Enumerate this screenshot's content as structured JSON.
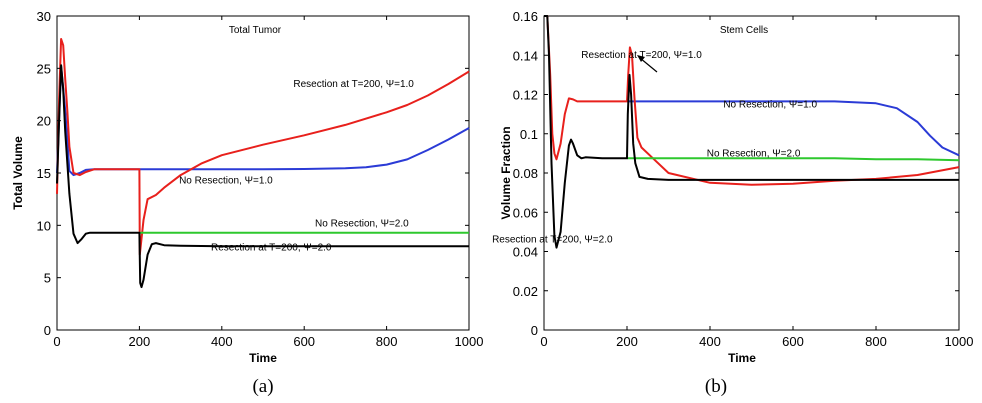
{
  "chart_data": [
    {
      "type": "line",
      "title": "Total Tumor",
      "xlabel": "Time",
      "ylabel": "Total Volume",
      "xlim": [
        0,
        1000
      ],
      "ylim": [
        0,
        30
      ],
      "xticks": [
        0,
        200,
        400,
        600,
        800,
        1000
      ],
      "yticks": [
        0,
        5,
        10,
        15,
        20,
        25,
        30
      ],
      "grid": false,
      "caption": "(a)",
      "series": [
        {
          "name": "No Resection, Ψ=1.0",
          "color": "#2b3bd6",
          "x": [
            0,
            10,
            20,
            30,
            40,
            55,
            70,
            90,
            120,
            160,
            200,
            300,
            400,
            500,
            600,
            700,
            750,
            800,
            850,
            900,
            950,
            1000
          ],
          "y": [
            15,
            25.2,
            21,
            15.2,
            14.8,
            15.0,
            15.3,
            15.35,
            15.35,
            15.35,
            15.35,
            15.35,
            15.35,
            15.35,
            15.38,
            15.45,
            15.55,
            15.8,
            16.3,
            17.2,
            18.2,
            19.3
          ]
        },
        {
          "name": "Resection at T=200, Ψ=1.0",
          "color": "#e8201c",
          "x": [
            0,
            5,
            10,
            15,
            20,
            25,
            30,
            40,
            55,
            70,
            90,
            120,
            160,
            199,
            200,
            201,
            210,
            220,
            240,
            260,
            300,
            350,
            400,
            500,
            600,
            700,
            800,
            850,
            900,
            950,
            1000
          ],
          "y": [
            13,
            22,
            27.8,
            27.2,
            24,
            21,
            17.5,
            15.0,
            14.8,
            15.1,
            15.35,
            15.35,
            15.35,
            15.35,
            15.35,
            7.2,
            10.5,
            12.5,
            12.9,
            13.6,
            14.8,
            15.9,
            16.7,
            17.7,
            18.6,
            19.6,
            20.8,
            21.5,
            22.4,
            23.5,
            24.7
          ]
        },
        {
          "name": "No Resection, Ψ=2.0",
          "color": "#2ec82e",
          "x": [
            200,
            250,
            300,
            400,
            500,
            600,
            700,
            800,
            900,
            1000
          ],
          "y": [
            9.3,
            9.3,
            9.3,
            9.3,
            9.3,
            9.3,
            9.3,
            9.3,
            9.3,
            9.3
          ]
        },
        {
          "name": "Resection at T=200, Ψ=2.0",
          "color": "#000000",
          "x": [
            0,
            5,
            10,
            15,
            20,
            30,
            40,
            50,
            60,
            70,
            80,
            100,
            140,
            199,
            200,
            202,
            205,
            210,
            220,
            230,
            240,
            260,
            300,
            400,
            600,
            800,
            1000
          ],
          "y": [
            14,
            20,
            25.3,
            23,
            19,
            13,
            9.2,
            8.3,
            8.7,
            9.2,
            9.3,
            9.3,
            9.3,
            9.3,
            9.3,
            4.5,
            4.1,
            4.8,
            7.2,
            8.2,
            8.3,
            8.1,
            8.05,
            8.0,
            8.0,
            8.0,
            8.0
          ]
        }
      ],
      "annotations": [
        {
          "text": "Resection at T=200, Ψ=1.0",
          "x": 720,
          "y": 23.2
        },
        {
          "text": "No Resection, Ψ=1.0",
          "x": 410,
          "y": 14.0
        },
        {
          "text": "No Resection, Ψ=2.0",
          "x": 740,
          "y": 9.9
        },
        {
          "text": "Resection at T=200, Ψ=2.0",
          "x": 520,
          "y": 7.6
        }
      ]
    },
    {
      "type": "line",
      "title": "Stem Cells",
      "xlabel": "Time",
      "ylabel": "Volume Fraction",
      "xlim": [
        0,
        1000
      ],
      "ylim": [
        0,
        0.16
      ],
      "xticks": [
        0,
        200,
        400,
        600,
        800,
        1000
      ],
      "yticks": [
        0,
        0.02,
        0.04,
        0.06,
        0.08,
        0.1,
        0.12,
        0.14,
        0.16
      ],
      "grid": false,
      "caption": "(b)",
      "series": [
        {
          "name": "No Resection, Ψ=1.0",
          "color": "#2b3bd6",
          "x": [
            200,
            300,
            400,
            500,
            600,
            700,
            800,
            850,
            900,
            930,
            960,
            1000
          ],
          "y": [
            0.1165,
            0.1165,
            0.1165,
            0.1165,
            0.1165,
            0.1165,
            0.1155,
            0.113,
            0.106,
            0.099,
            0.093,
            0.089
          ]
        },
        {
          "name": "Resection at T=200, Ψ=1.0",
          "color": "#e8201c",
          "x": [
            0,
            8,
            15,
            20,
            25,
            30,
            40,
            50,
            60,
            70,
            80,
            100,
            150,
            199,
            200,
            203,
            207,
            212,
            218,
            225,
            235,
            260,
            300,
            400,
            500,
            600,
            700,
            800,
            900,
            1000
          ],
          "y": [
            0.16,
            0.16,
            0.13,
            0.1,
            0.09,
            0.087,
            0.095,
            0.11,
            0.118,
            0.1175,
            0.1165,
            0.1165,
            0.1165,
            0.1165,
            0.1165,
            0.13,
            0.144,
            0.14,
            0.118,
            0.098,
            0.093,
            0.088,
            0.08,
            0.075,
            0.074,
            0.0745,
            0.076,
            0.077,
            0.079,
            0.083
          ]
        },
        {
          "name": "No Resection, Ψ=2.0",
          "color": "#2ec82e",
          "x": [
            200,
            300,
            400,
            500,
            600,
            700,
            800,
            900,
            1000
          ],
          "y": [
            0.0875,
            0.0875,
            0.0875,
            0.0875,
            0.0875,
            0.0875,
            0.087,
            0.087,
            0.0865
          ]
        },
        {
          "name": "Resection at T=200, Ψ=2.0",
          "color": "#000000",
          "x": [
            0,
            8,
            12,
            18,
            25,
            30,
            40,
            50,
            60,
            65,
            70,
            80,
            90,
            100,
            140,
            199,
            200,
            202,
            206,
            210,
            215,
            220,
            230,
            250,
            300,
            400,
            600,
            800,
            1000
          ],
          "y": [
            0.16,
            0.16,
            0.14,
            0.085,
            0.048,
            0.042,
            0.05,
            0.075,
            0.094,
            0.097,
            0.095,
            0.089,
            0.0875,
            0.088,
            0.0875,
            0.0875,
            0.0875,
            0.11,
            0.13,
            0.12,
            0.095,
            0.085,
            0.078,
            0.077,
            0.0765,
            0.0765,
            0.0765,
            0.0765,
            0.0765
          ]
        }
      ],
      "annotations": [
        {
          "text": "Resection at T=200, Ψ=1.0",
          "x": 235,
          "y": 0.1385
        },
        {
          "text": "No Resection, Ψ=1.0",
          "x": 545,
          "y": 0.1135
        },
        {
          "text": "No Resection, Ψ=2.0",
          "x": 505,
          "y": 0.0885
        },
        {
          "text": "Resection at T=200, Ψ=2.0",
          "x": 20,
          "y": 0.0445
        }
      ]
    }
  ]
}
